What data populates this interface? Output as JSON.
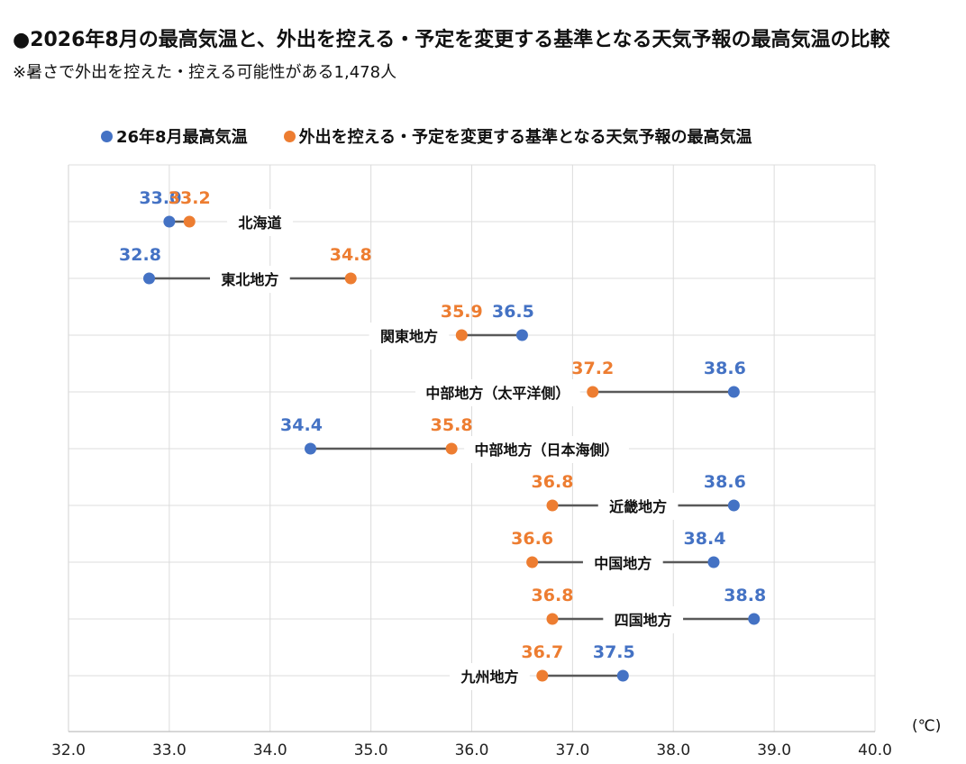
{
  "header": {
    "title": "●2026年8月の最高気温と、外出を控える・予定を変更する基準となる天気予報の最高気温の比較",
    "subtitle": "※暑さで外出を控えた・控える可能性がある1,478人"
  },
  "legend": {
    "items": [
      {
        "label": "26年8月最高気温",
        "color": "#4472C4"
      },
      {
        "label": "外出を控える・予定を変更する基準となる天気予報の最高気温",
        "color": "#ED7D31"
      }
    ]
  },
  "unit_label": "(℃)",
  "chart_data": {
    "type": "dumbbell",
    "title": "●2026年8月の最高気温と、外出を控える・予定を変更する基準となる天気予報の最高気温の比較",
    "subtitle": "※暑さで外出を控えた・控える可能性がある1,478人",
    "xlabel": "(℃)",
    "xlim": [
      32.0,
      40.0
    ],
    "x_ticks": [
      "32.0",
      "33.0",
      "34.0",
      "35.0",
      "36.0",
      "37.0",
      "38.0",
      "39.0",
      "40.0"
    ],
    "grid": true,
    "legend_position": "top",
    "categories": [
      "北海道",
      "東北地方",
      "関東地方",
      "中部地方（太平洋側）",
      "中部地方（日本海側）",
      "近畿地方",
      "中国地方",
      "四国地方",
      "九州地方"
    ],
    "series": [
      {
        "name": "26年8月最高気温",
        "color": "#4472C4",
        "values": [
          33.0,
          32.8,
          36.5,
          38.6,
          34.4,
          38.6,
          38.4,
          38.8,
          37.5
        ]
      },
      {
        "name": "外出を控える・予定を変更する基準となる天気予報の最高気温",
        "color": "#ED7D31",
        "values": [
          33.2,
          34.8,
          35.9,
          37.2,
          35.8,
          36.8,
          36.6,
          36.8,
          36.7
        ]
      }
    ]
  }
}
